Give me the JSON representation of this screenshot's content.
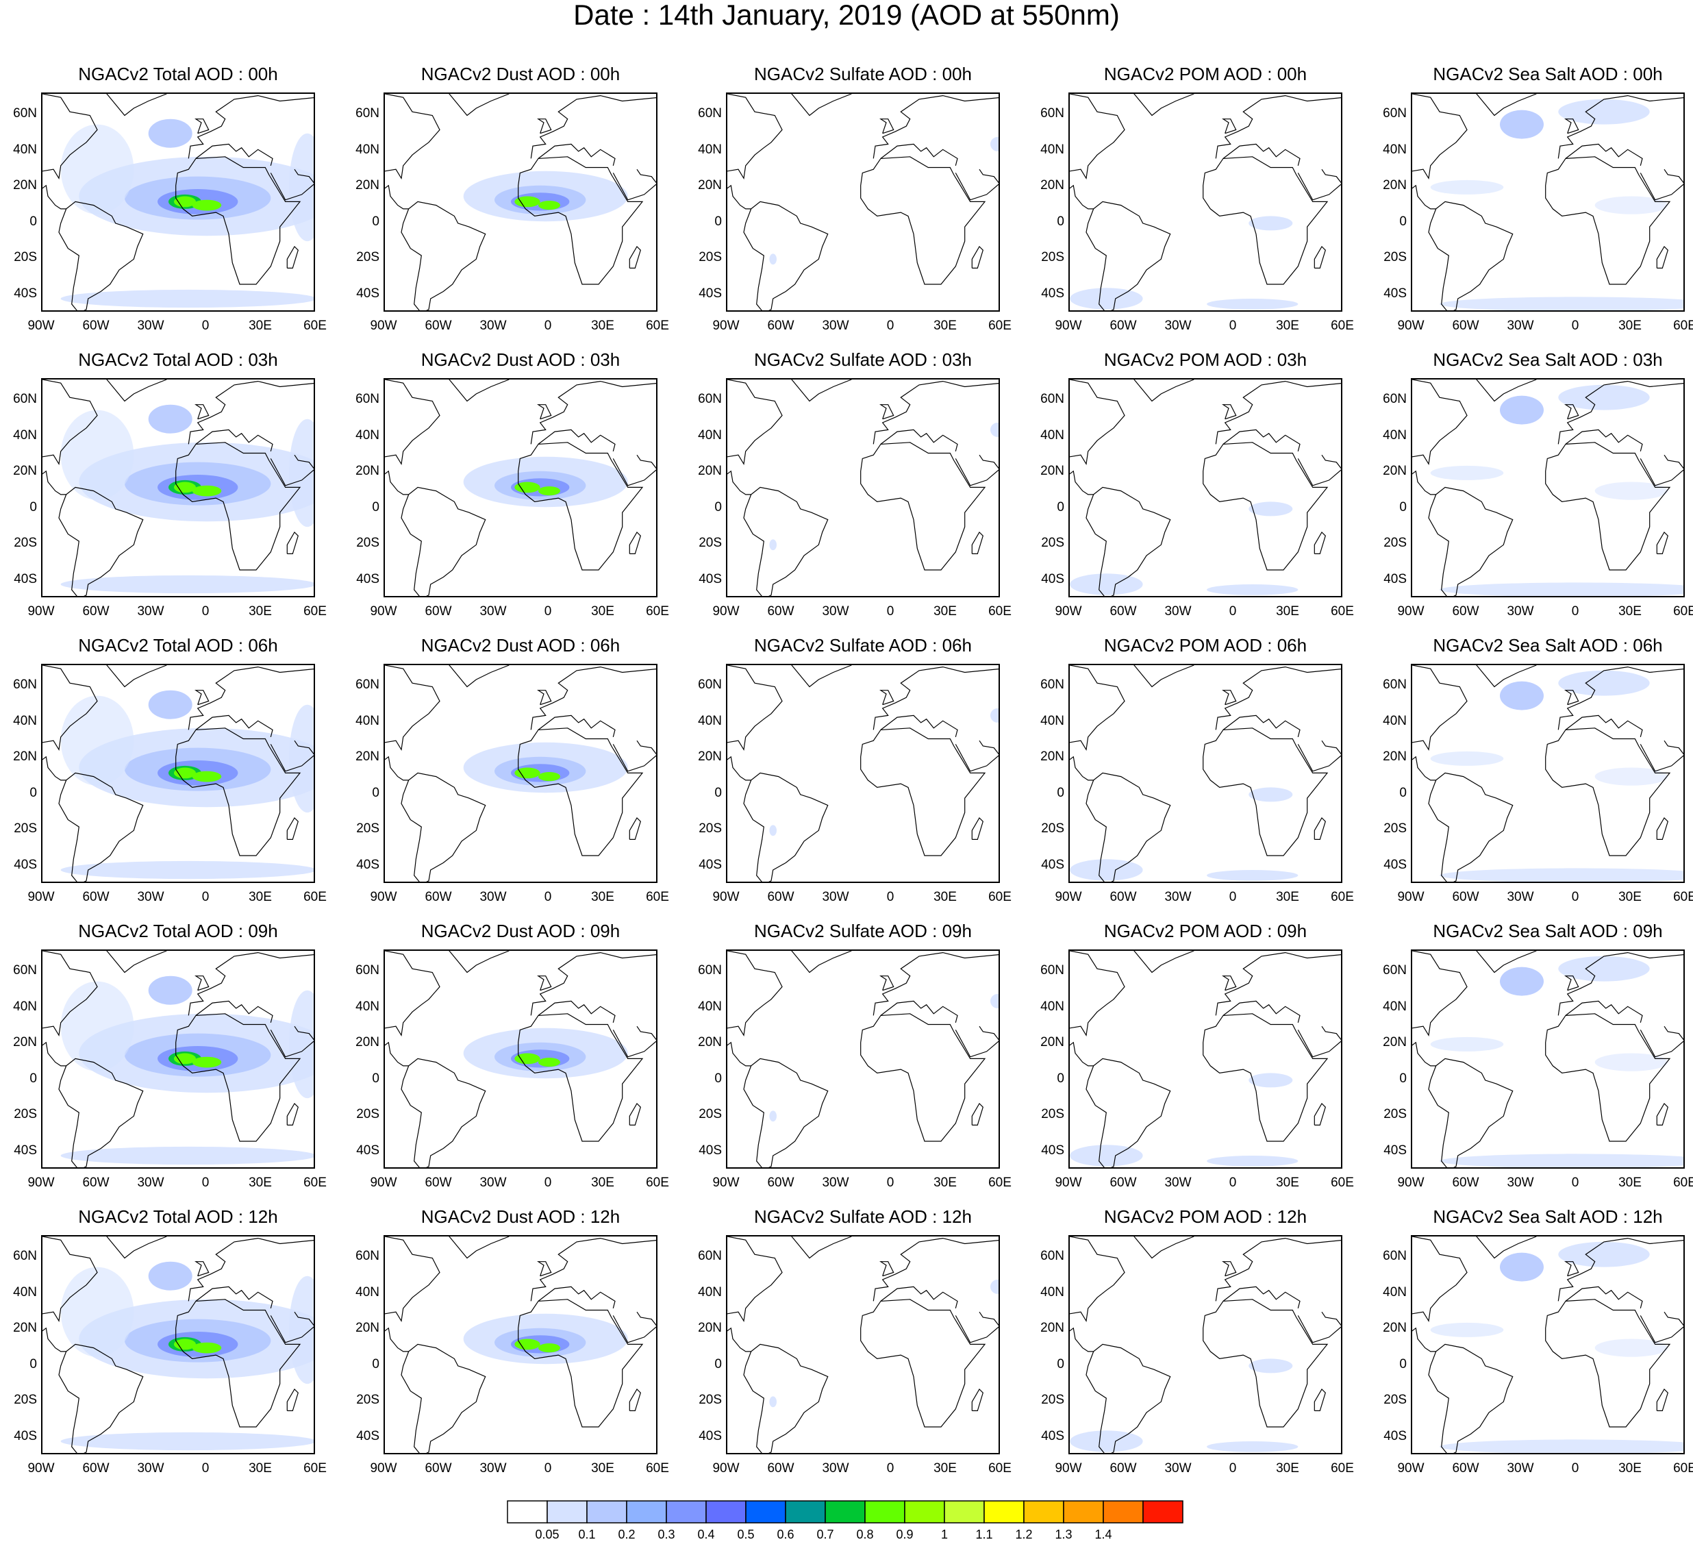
{
  "title": "Date : 14th January, 2019 (AOD at 550nm)",
  "row_hours": [
    "00h",
    "03h",
    "06h",
    "09h",
    "12h"
  ],
  "column_titles": [
    [
      "NGACv2 Total AOD : 00h",
      "NGACv2 Dust AOD : 00h",
      "NGACv2 Sulfate AOD : 00h",
      "NGACv2 POM AOD : 00h",
      "NGACv2 Sea Salt AOD : 00h"
    ],
    [
      "NGACv2 Total AOD : 03h",
      "NGACv2 Dust AOD : 03h",
      "NGACv2 Sulfate AOD : 03h",
      "NGACv2 POM AOD : 03h",
      "NGACv2 Sea Salt AOD : 03h"
    ],
    [
      "NGACv2 Total AOD : 06h",
      "NGACv2 Dust AOD : 06h",
      "NGACv2 Sulfate AOD : 06h",
      "NGACv2 POM AOD : 06h",
      "NGACv2 Sea Salt AOD : 06h"
    ],
    [
      "NGACv2 Total AOD : 09h",
      "NGACv2 Dust AOD : 09h",
      "NGACv2 Sulfate AOD : 09h",
      "NGACv2 POM AOD : 09h",
      "NGACv2 Sea Salt  AOD : 09h"
    ],
    [
      "NGACv2 Total AOD  : 12h",
      "NGACv2 Dust AOD : 12h",
      "NGACv2 Sulfate AOD : 12h",
      "NGACv2 POM  AOD : 12h",
      "NGACv2 Sea Salt  AOD : 12h"
    ]
  ],
  "lat_labels": [
    "60N",
    "40N",
    "20N",
    "0",
    "20S",
    "40S"
  ],
  "lon_labels": [
    "90W",
    "60W",
    "30W",
    "0",
    "30E",
    "60E"
  ],
  "colorbar": {
    "labels": [
      "0.05",
      "0.1",
      "0.2",
      "0.3",
      "0.4",
      "0.5",
      "0.6",
      "0.7",
      "0.8",
      "0.9",
      "1",
      "1.1",
      "1.2",
      "1.3",
      "1.4"
    ],
    "colors": [
      "#ffffff",
      "#d6e2ff",
      "#b5c9ff",
      "#8eb2ff",
      "#7f96ff",
      "#6370ff",
      "#0063ff",
      "#009696",
      "#00c633",
      "#63ff00",
      "#96ff00",
      "#c6ff33",
      "#ffff00",
      "#ffc600",
      "#ffa000",
      "#ff7c00",
      "#ff1900"
    ]
  },
  "map_colors": {
    "land_line": "#000000",
    "low": "#d6e2ff",
    "mid": "#b5c9ff",
    "high": "#7f96ff",
    "dust_core": "#63ff00",
    "dust_ring": "#00c633"
  }
}
